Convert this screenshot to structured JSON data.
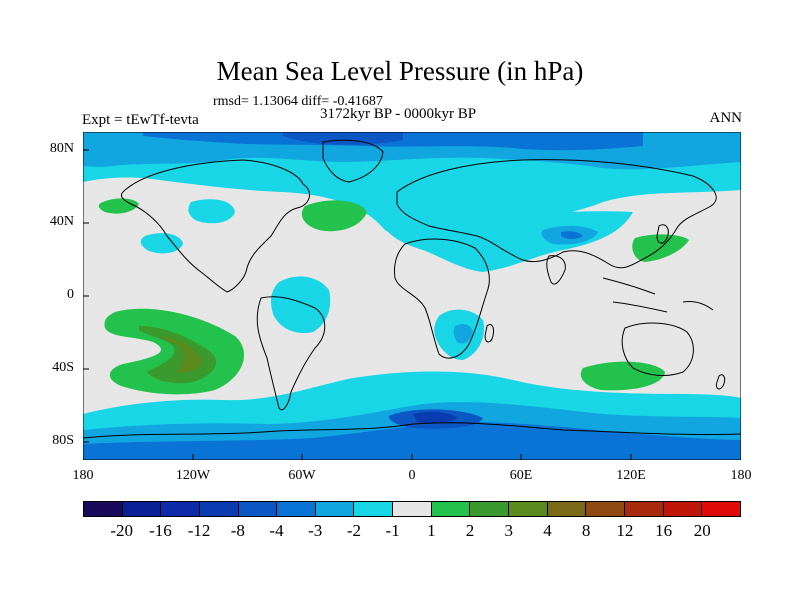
{
  "title": "Mean Sea Level Pressure (in hPa)",
  "stats": "rmsd= 1.13064  diff= -0.41687",
  "experiment": "Expt = tEwTf-tevta",
  "period": "3172kyr BP - 0000kyr BP",
  "season": "ANN",
  "lat_labels": [
    "80N",
    "40N",
    "0",
    "40S",
    "80S"
  ],
  "lon_labels": [
    "180",
    "120W",
    "60W",
    "0",
    "60E",
    "120E",
    "180"
  ],
  "colorbar": {
    "labels": [
      "-20",
      "-16",
      "-12",
      "-8",
      "-4",
      "-3",
      "-2",
      "-1",
      "1",
      "2",
      "3",
      "4",
      "8",
      "12",
      "16",
      "20"
    ],
    "colors": [
      "#1a0a5c",
      "#0b1f96",
      "#0d2aa8",
      "#0a3bb0",
      "#0b57c4",
      "#0a73d6",
      "#12a6e0",
      "#18d6e6",
      "#e6e6e6",
      "#22c24c",
      "#3a9a2e",
      "#5b8a1e",
      "#7a6a18",
      "#8f4a12",
      "#a82a0c",
      "#c0160a",
      "#e00a06"
    ]
  }
}
